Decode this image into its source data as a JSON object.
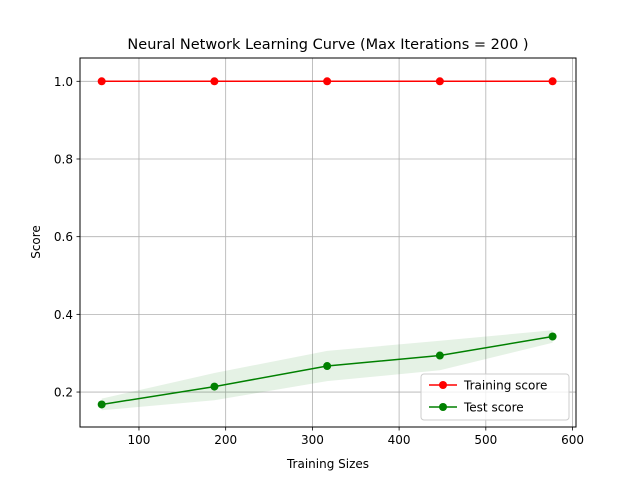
{
  "chart_data": {
    "type": "line",
    "title": "Neural Network Learning Curve (Max Iterations = 200 )",
    "xlabel": "Training Sizes",
    "ylabel": "Score",
    "xlim": [
      32,
      604
    ],
    "ylim": [
      0.11,
      1.06
    ],
    "xticks": [
      100,
      200,
      300,
      400,
      500,
      600
    ],
    "yticks": [
      0.2,
      0.4,
      0.6,
      0.8,
      1.0
    ],
    "ytick_labels": [
      "0.2",
      "0.4",
      "0.6",
      "0.8",
      "1.0"
    ],
    "grid": true,
    "legend_position": "lower right",
    "x": [
      57,
      187,
      317,
      447,
      577
    ],
    "series": [
      {
        "name": "Training score",
        "color": "#ff0000",
        "values": [
          1.0,
          1.0,
          1.0,
          1.0,
          1.0
        ],
        "band_lower": [
          1.0,
          1.0,
          1.0,
          1.0,
          1.0
        ],
        "band_upper": [
          1.0,
          1.0,
          1.0,
          1.0,
          1.0
        ]
      },
      {
        "name": "Test score",
        "color": "#008000",
        "values": [
          0.168,
          0.214,
          0.267,
          0.294,
          0.343
        ],
        "band_lower": [
          0.153,
          0.179,
          0.228,
          0.256,
          0.327
        ],
        "band_upper": [
          0.183,
          0.249,
          0.306,
          0.332,
          0.359
        ]
      }
    ]
  }
}
